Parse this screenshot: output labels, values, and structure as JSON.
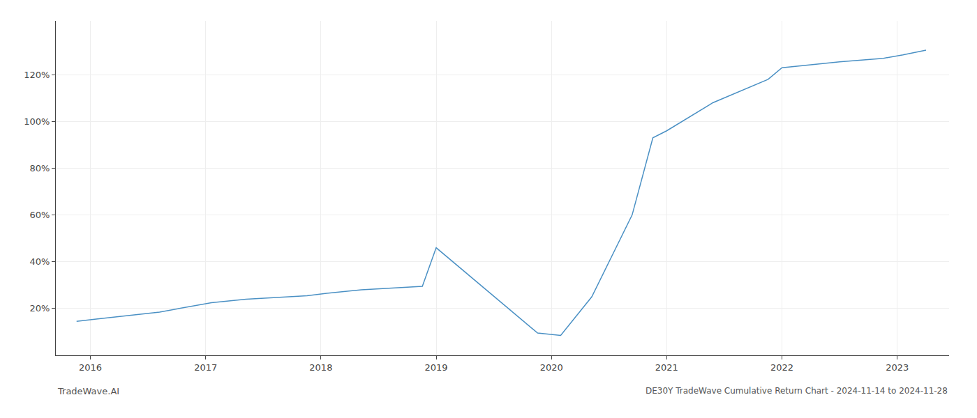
{
  "chart_data": {
    "type": "line",
    "title": "DE30Y TradeWave Cumulative Return Chart - 2024-11-14 to 2024-11-28",
    "annotations": [
      "TradeWave.AI"
    ],
    "x": [
      2015.88,
      2016.05,
      2016.6,
      2016.95,
      2017.05,
      2017.35,
      2017.88,
      2018.05,
      2018.35,
      2018.88,
      2019.0,
      2019.88,
      2020.0,
      2020.08,
      2020.35,
      2020.7,
      2020.88,
      2021.0,
      2021.4,
      2021.88,
      2022.0,
      2022.5,
      2022.88,
      2023.05,
      2023.25
    ],
    "values": [
      14.5,
      15.5,
      18.5,
      21.5,
      22.5,
      24.0,
      25.5,
      26.5,
      28.0,
      29.5,
      46.0,
      9.5,
      9.0,
      8.5,
      25.0,
      60.0,
      93.0,
      96.0,
      108.0,
      118.0,
      123.0,
      125.5,
      127.0,
      128.5,
      130.5
    ],
    "color": "#4a90c4",
    "xlim": [
      2015.7,
      2023.45
    ],
    "ylim": [
      0,
      143
    ],
    "xticks": [
      2016,
      2017,
      2018,
      2019,
      2020,
      2021,
      2022,
      2023
    ],
    "yticks": [
      {
        "value": 20,
        "label": "20%"
      },
      {
        "value": 40,
        "label": "40%"
      },
      {
        "value": 60,
        "label": "60%"
      },
      {
        "value": 80,
        "label": "80%"
      },
      {
        "value": 100,
        "label": "100%"
      },
      {
        "value": 120,
        "label": "120%"
      }
    ],
    "grid": true
  }
}
